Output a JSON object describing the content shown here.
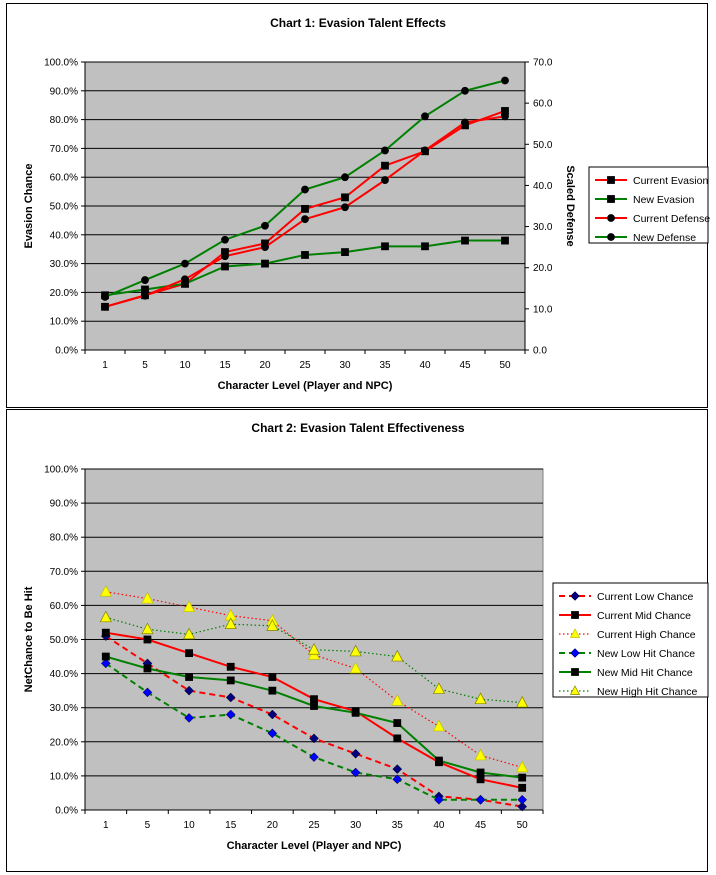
{
  "chart_data": [
    {
      "type": "line",
      "title": "Chart 1: Evasion Talent Effects",
      "xlabel": "Character Level (Player and NPC)",
      "ylabel": "Evasion Chance",
      "y2label": "Scaled Defense",
      "categories": [
        "1",
        "5",
        "10",
        "15",
        "20",
        "25",
        "30",
        "35",
        "40",
        "45",
        "50"
      ],
      "ylim": [
        0,
        100
      ],
      "y2lim": [
        0,
        70
      ],
      "yticks": [
        "0.0%",
        "10.0%",
        "20.0%",
        "30.0%",
        "40.0%",
        "50.0%",
        "60.0%",
        "70.0%",
        "80.0%",
        "90.0%",
        "100.0%"
      ],
      "y2ticks": [
        "0.0",
        "10.0",
        "20.0",
        "30.0",
        "40.0",
        "50.0",
        "60.0",
        "70.0"
      ],
      "grid": true,
      "legend": "right",
      "series": [
        {
          "name": "Current Evasion",
          "axis": "left",
          "color": "#ff0000",
          "marker": "square",
          "dash": "solid",
          "values": [
            15,
            19,
            23,
            34,
            37,
            49,
            53,
            64,
            69,
            78,
            83
          ]
        },
        {
          "name": "New Evasion",
          "axis": "left",
          "color": "#008000",
          "marker": "square",
          "dash": "solid",
          "values": [
            19,
            21,
            23,
            29,
            30,
            33,
            34,
            36,
            36,
            38,
            38
          ]
        },
        {
          "name": "Current Defense",
          "axis": "right",
          "color": "#ff0000",
          "marker": "circle",
          "dash": "solid",
          "values": [
            10.5,
            13.2,
            17.2,
            22.8,
            25.0,
            31.8,
            34.7,
            41.3,
            48.5,
            55.3,
            56.8
          ]
        },
        {
          "name": "New Defense",
          "axis": "right",
          "color": "#008000",
          "marker": "circle",
          "dash": "solid",
          "values": [
            12.9,
            17.0,
            21.0,
            26.8,
            30.2,
            39.0,
            42.0,
            48.5,
            56.8,
            63.0,
            65.5
          ]
        }
      ]
    },
    {
      "type": "line",
      "title": "Chart 2: Evasion Talent Effectiveness",
      "xlabel": "Character Level (Player and NPC)",
      "ylabel": "NetChance to Be Hit",
      "categories": [
        "1",
        "5",
        "10",
        "15",
        "20",
        "25",
        "30",
        "35",
        "40",
        "45",
        "50"
      ],
      "ylim": [
        0,
        100
      ],
      "yticks": [
        "0.0%",
        "10.0%",
        "20.0%",
        "30.0%",
        "40.0%",
        "50.0%",
        "60.0%",
        "70.0%",
        "80.0%",
        "90.0%",
        "100.0%"
      ],
      "grid": true,
      "legend": "right",
      "series": [
        {
          "name": "Current Low Chance",
          "color": "#ff0000",
          "marker": "diamond",
          "markerColor": "#000080",
          "dash": "dashed",
          "values": [
            51,
            43,
            35,
            33,
            28,
            21,
            16.5,
            12,
            4,
            3,
            1
          ]
        },
        {
          "name": "Current Mid Chance",
          "color": "#ff0000",
          "marker": "square",
          "markerColor": "#000000",
          "dash": "solid",
          "values": [
            52,
            50,
            46,
            42,
            39,
            32.5,
            29,
            21,
            14,
            9,
            6.5
          ]
        },
        {
          "name": "Current High Chance",
          "color": "#ff0000",
          "marker": "triangle",
          "markerColor": "#ffff00",
          "dash": "dotted",
          "values": [
            64,
            62,
            59.5,
            57,
            55.5,
            45.5,
            41.5,
            32,
            24.5,
            16,
            12.5
          ]
        },
        {
          "name": "New Low Hit Chance",
          "color": "#008000",
          "marker": "diamond",
          "markerColor": "#0000ff",
          "dash": "dashed",
          "values": [
            43,
            34.5,
            27,
            28,
            22.5,
            15.5,
            11,
            9,
            3,
            3,
            3
          ]
        },
        {
          "name": "New Mid Hit Chance",
          "color": "#008000",
          "marker": "square",
          "markerColor": "#000000",
          "dash": "solid",
          "values": [
            45,
            41.5,
            39,
            38,
            35,
            30.5,
            28.5,
            25.5,
            14.5,
            11,
            9.5
          ]
        },
        {
          "name": "New High Hit Chance",
          "color": "#008000",
          "marker": "triangle-open",
          "markerColor": "#ffff00",
          "dash": "dotted",
          "values": [
            56.5,
            53,
            51.5,
            54.5,
            54,
            47,
            46.5,
            45,
            35.5,
            32.5,
            31.5
          ]
        }
      ]
    }
  ]
}
